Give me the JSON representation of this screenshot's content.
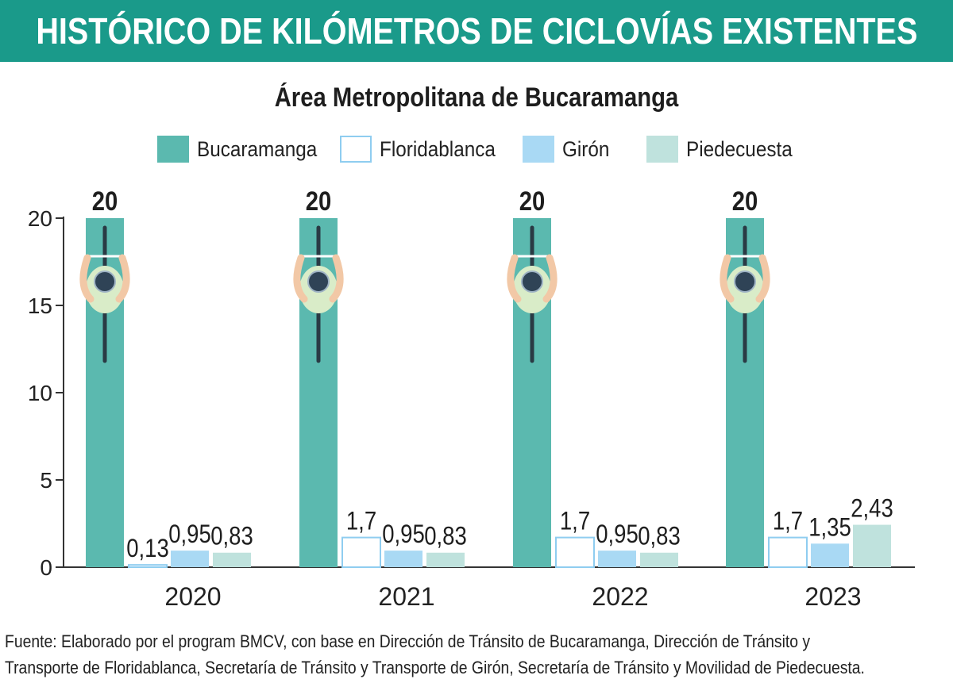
{
  "chart_data": {
    "type": "bar",
    "title": "HISTÓRICO DE KILÓMETROS DE CICLOVÍAS EXISTENTES",
    "subtitle": "Área Metropolitana de Bucaramanga",
    "categories": [
      "2020",
      "2021",
      "2022",
      "2023"
    ],
    "series": [
      {
        "name": "Bucaramanga",
        "values": [
          20,
          20,
          20,
          20
        ],
        "labels": [
          "20",
          "20",
          "20",
          "20"
        ],
        "color": "#5bb9af"
      },
      {
        "name": "Floridablanca",
        "values": [
          0.13,
          1.7,
          1.7,
          1.7
        ],
        "labels": [
          "0,13",
          "1,7",
          "1,7",
          "1,7"
        ],
        "color": "#ffffff",
        "stroke": "#8fcdf0"
      },
      {
        "name": "Girón",
        "values": [
          0.95,
          0.95,
          0.95,
          1.35
        ],
        "labels": [
          "0,95",
          "0,95",
          "0,95",
          "1,35"
        ],
        "color": "#a9d9f4"
      },
      {
        "name": "Piedecuesta",
        "values": [
          0.83,
          0.83,
          0.83,
          2.43
        ],
        "labels": [
          "0,83",
          "0,83",
          "0,83",
          "2,43"
        ],
        "color": "#bfe2dd"
      }
    ],
    "yticks": [
      "0",
      "5",
      "10",
      "15",
      "20"
    ],
    "ylim": [
      0,
      20
    ],
    "xlabel": "",
    "ylabel": "",
    "legend_position": "top",
    "grid": false
  },
  "source_note": {
    "line1": "Fuente: Elaborado por el program BMCV, con base en Dirección de Tránsito de Bucaramanga, Dirección de Tránsito y",
    "line2": "Transporte de Floridablanca, Secretaría de Tránsito y Transporte de Girón, Secretaría de Tránsito y Movilidad de Piedecuesta."
  }
}
